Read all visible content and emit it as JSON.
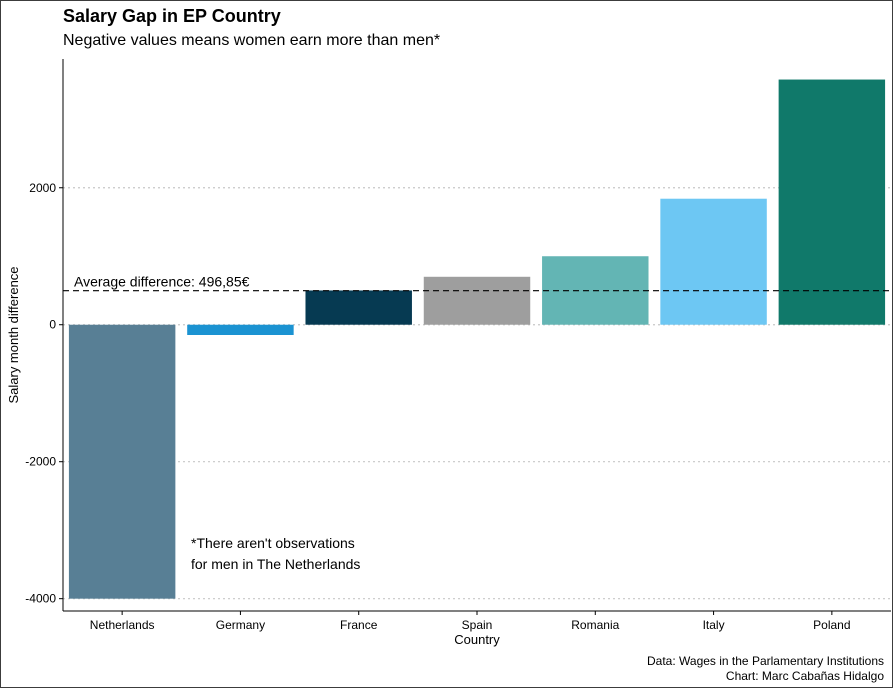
{
  "chart_data": {
    "type": "bar",
    "title": "Salary Gap in EP Country",
    "subtitle": "Negative values means women earn more than men*",
    "xlabel": "Country",
    "ylabel": "Salary month difference",
    "categories": [
      "Netherlands",
      "Germany",
      "France",
      "Spain",
      "Romania",
      "Italy",
      "Poland"
    ],
    "values": [
      -4000,
      -150,
      500,
      700,
      1000,
      1840,
      3580
    ],
    "colors": [
      "#587F95",
      "#1B93D2",
      "#063A52",
      "#9E9E9E",
      "#63B5B4",
      "#6DC7F3",
      "#10796A"
    ],
    "yticks": [
      -4000,
      -2000,
      0,
      2000
    ],
    "ylim": [
      -4180,
      3880
    ],
    "grid": "horizontal-dotted",
    "reference_line": {
      "value": 496.85,
      "label": "Average difference: 496,85€"
    },
    "annotation": {
      "lines": [
        "*There aren't observations",
        "for men in The Netherlands"
      ]
    },
    "caption": [
      "Data: Wages in the Parlamentary Institutions",
      "Chart: Marc Cabañas Hidalgo"
    ]
  }
}
